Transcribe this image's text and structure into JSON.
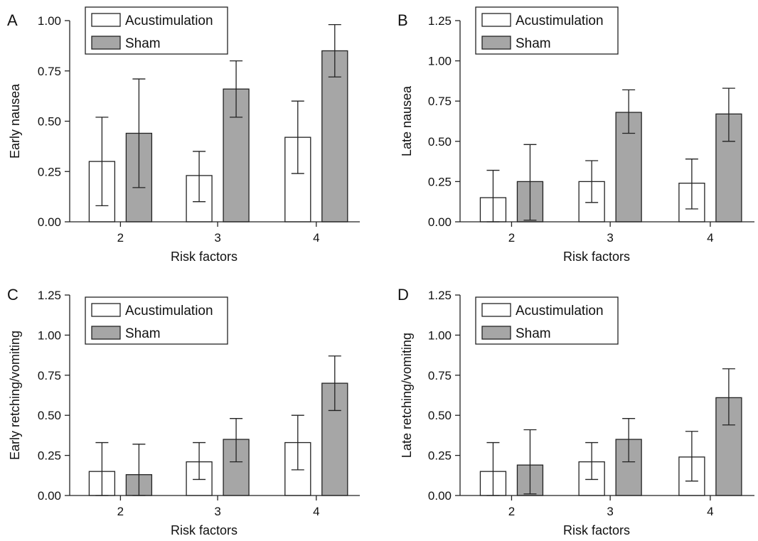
{
  "chart_data": [
    {
      "type": "bar",
      "panel": "A",
      "xlabel": "Risk factors",
      "ylabel": "Early nausea",
      "ylim": [
        0,
        1.0
      ],
      "yticks": [
        "0.00",
        "0.25",
        "0.50",
        "0.75",
        "1.00"
      ],
      "categories": [
        "2",
        "3",
        "4"
      ],
      "legend": "top-left",
      "series": [
        {
          "name": "Acustimulation",
          "color": "#ffffff",
          "values": [
            0.3,
            0.23,
            0.42
          ],
          "err_low": [
            0.08,
            0.1,
            0.24
          ],
          "err_high": [
            0.52,
            0.35,
            0.6
          ]
        },
        {
          "name": "Sham",
          "color": "#a6a6a6",
          "values": [
            0.44,
            0.66,
            0.85
          ],
          "err_low": [
            0.17,
            0.52,
            0.72
          ],
          "err_high": [
            0.71,
            0.8,
            0.98
          ]
        }
      ]
    },
    {
      "type": "bar",
      "panel": "B",
      "xlabel": "Risk factors",
      "ylabel": "Late nausea",
      "ylim": [
        0,
        1.25
      ],
      "yticks": [
        "0.00",
        "0.25",
        "0.50",
        "0.75",
        "1.00",
        "1.25"
      ],
      "categories": [
        "2",
        "3",
        "4"
      ],
      "legend": "top-left",
      "series": [
        {
          "name": "Acustimulation",
          "color": "#ffffff",
          "values": [
            0.15,
            0.25,
            0.24
          ],
          "err_low": [
            0.0,
            0.12,
            0.08
          ],
          "err_high": [
            0.32,
            0.38,
            0.39
          ]
        },
        {
          "name": "Sham",
          "color": "#a6a6a6",
          "values": [
            0.25,
            0.68,
            0.67
          ],
          "err_low": [
            0.01,
            0.55,
            0.5
          ],
          "err_high": [
            0.48,
            0.82,
            0.83
          ]
        }
      ]
    },
    {
      "type": "bar",
      "panel": "C",
      "xlabel": "Risk factors",
      "ylabel": "Early retching/vomiting",
      "ylim": [
        0,
        1.25
      ],
      "yticks": [
        "0.00",
        "0.25",
        "0.50",
        "0.75",
        "1.00",
        "1.25"
      ],
      "categories": [
        "2",
        "3",
        "4"
      ],
      "legend": "top-left",
      "series": [
        {
          "name": "Acustimulation",
          "color": "#ffffff",
          "values": [
            0.15,
            0.21,
            0.33
          ],
          "err_low": [
            0.0,
            0.1,
            0.16
          ],
          "err_high": [
            0.33,
            0.33,
            0.5
          ]
        },
        {
          "name": "Sham",
          "color": "#a6a6a6",
          "values": [
            0.13,
            0.35,
            0.7
          ],
          "err_low": [
            0.0,
            0.21,
            0.53
          ],
          "err_high": [
            0.32,
            0.48,
            0.87
          ]
        }
      ]
    },
    {
      "type": "bar",
      "panel": "D",
      "xlabel": "Risk factors",
      "ylabel": "Late retching/vomiting",
      "ylim": [
        0,
        1.25
      ],
      "yticks": [
        "0.00",
        "0.25",
        "0.50",
        "0.75",
        "1.00",
        "1.25"
      ],
      "categories": [
        "2",
        "3",
        "4"
      ],
      "legend": "top-left",
      "series": [
        {
          "name": "Acustimulation",
          "color": "#ffffff",
          "values": [
            0.15,
            0.21,
            0.24
          ],
          "err_low": [
            0.0,
            0.1,
            0.09
          ],
          "err_high": [
            0.33,
            0.33,
            0.4
          ]
        },
        {
          "name": "Sham",
          "color": "#a6a6a6",
          "values": [
            0.19,
            0.35,
            0.61
          ],
          "err_low": [
            0.01,
            0.21,
            0.44
          ],
          "err_high": [
            0.41,
            0.48,
            0.79
          ]
        }
      ]
    }
  ]
}
